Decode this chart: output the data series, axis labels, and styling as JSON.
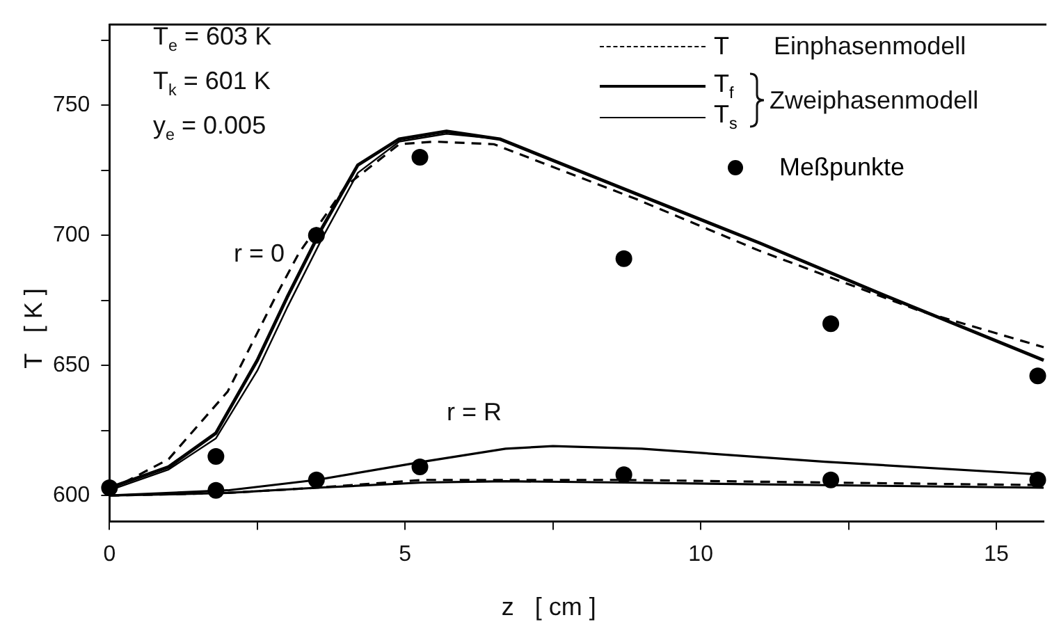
{
  "chart_data": {
    "type": "line",
    "xlabel": "z   [ cm ]",
    "ylabel": "T   [ K ]",
    "xlim": [
      0,
      15.8
    ],
    "xticks": [
      0,
      {
        "value": 2.5,
        "label": null
      },
      5,
      {
        "value": 7.5,
        "label": null
      },
      10,
      {
        "value": 12.5,
        "label": null
      },
      15
    ],
    "ylim": [
      590,
      781
    ],
    "yticks": [
      600,
      {
        "value": 625,
        "label": null
      },
      650,
      {
        "value": 675,
        "label": null
      },
      700,
      {
        "value": 725,
        "label": null
      },
      750,
      {
        "value": 775,
        "label": null
      }
    ],
    "grid": false,
    "legend": "top right",
    "series": [
      {
        "name": "T",
        "type": "line",
        "color": "#000000",
        "line_style": "dashed",
        "marker": "none",
        "x": [
          0,
          1,
          2,
          2.8,
          3.2,
          4,
          4.9,
          5.5,
          6.5,
          8.9,
          11,
          13.7,
          15.8
        ],
        "values": [
          602,
          614,
          640,
          676,
          693,
          719,
          735,
          736,
          735,
          714,
          694,
          671,
          657
        ]
      },
      {
        "name": "T$_{f}$",
        "type": "line",
        "color": "#000000",
        "line_style": "solid",
        "marker": "none",
        "x": [
          0,
          1,
          1.8,
          2.5,
          3,
          3.6,
          4.2,
          4.9,
          5.7,
          6.6,
          8.9,
          11,
          13.1,
          15.8
        ],
        "values": [
          603,
          611,
          624,
          652,
          676,
          703,
          727,
          737,
          740,
          737,
          716,
          697,
          677,
          652
        ]
      },
      {
        "name": "T$_{s}$",
        "type": "line",
        "color": "#000000",
        "line_style": "solid",
        "marker": "none",
        "x": [
          0,
          1,
          1.8,
          2.5,
          3,
          3.6,
          4.2,
          4.9,
          5.7,
          6.6,
          8.9,
          11,
          13.1,
          15.8
        ],
        "values": [
          602,
          610,
          622,
          648,
          672,
          699,
          724,
          736,
          739,
          737,
          716,
          697,
          677,
          652
        ]
      },
      {
        "name": "Meßpunkte",
        "type": "scatter",
        "color": "#000000",
        "marker": "circle",
        "x": [
          0,
          1.8,
          3.5,
          5.25,
          8.7,
          12.2,
          15.7,
          1.8,
          3.5,
          5.25,
          8.7,
          12.2,
          15.7
        ],
        "values": [
          603,
          615,
          700,
          730,
          691,
          666,
          646,
          602,
          606,
          611,
          608,
          606,
          606
        ]
      },
      {
        "type": "line",
        "color": "#000000",
        "line_style": "dashed",
        "marker": "none",
        "x": [
          0,
          2,
          3.5,
          5.3,
          7,
          8.7,
          12.1,
          15.8
        ],
        "values": [
          600,
          601,
          603,
          606,
          606,
          606,
          605,
          604
        ]
      },
      {
        "type": "line",
        "color": "#000000",
        "line_style": "solid",
        "marker": "none",
        "x": [
          0,
          2,
          3.5,
          5.3,
          6.7,
          7.5,
          9,
          12.1,
          15.8
        ],
        "values": [
          600,
          602,
          606,
          613,
          618,
          619,
          618,
          613,
          608
        ]
      },
      {
        "type": "line",
        "color": "#000000",
        "line_style": "solid",
        "marker": "none",
        "x": [
          0,
          2,
          3.5,
          5.3,
          6.7,
          8.7,
          12.1,
          15.8
        ],
        "values": [
          600,
          601,
          603,
          605,
          605.5,
          605,
          604,
          603
        ]
      }
    ],
    "annotations": [
      "T$_{e}$ = 603 K",
      "T$_{k}$ = 601 K",
      "y$_{e}$ = 0.005",
      "Einphasenmodell",
      "Zweiphasenmodell",
      "r = 0",
      "r = R"
    ]
  }
}
